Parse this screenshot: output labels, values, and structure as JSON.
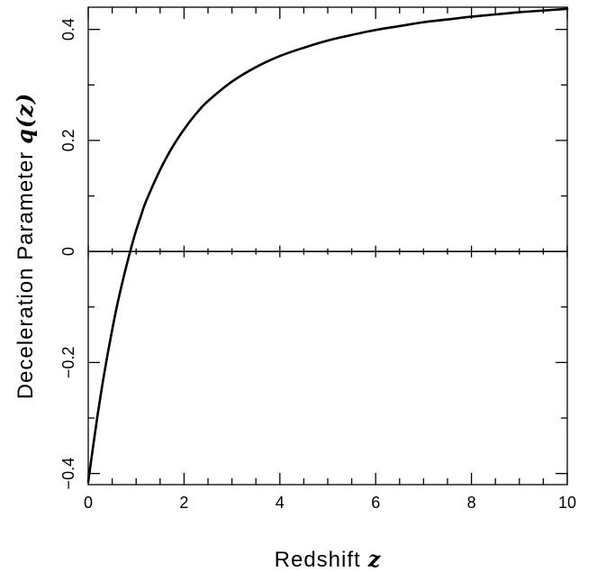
{
  "chart_data": {
    "type": "line",
    "title": "",
    "xlabel_text": "Redshift",
    "xlabel_var": "z",
    "ylabel_text": "Deceleration Parameter",
    "ylabel_var": "q(z)",
    "xlim": [
      0,
      10
    ],
    "ylim": [
      -0.42,
      0.44
    ],
    "grid": false,
    "xticks": [
      {
        "value": 0,
        "label": "0"
      },
      {
        "value": 2,
        "label": "2"
      },
      {
        "value": 4,
        "label": "4"
      },
      {
        "value": 6,
        "label": "6"
      },
      {
        "value": 8,
        "label": "8"
      },
      {
        "value": 10,
        "label": "10"
      }
    ],
    "yticks": [
      {
        "value": -0.4,
        "label": "−0.4"
      },
      {
        "value": -0.2,
        "label": "−0.2"
      },
      {
        "value": 0,
        "label": "0"
      },
      {
        "value": 0.2,
        "label": "0.2"
      },
      {
        "value": 0.4,
        "label": "0.4"
      }
    ],
    "x_minor_step": 0.5,
    "y_minor_step": 0.1,
    "reference_line_y": 0,
    "series": [
      {
        "color": "#000000",
        "x": [
          0,
          0.1,
          0.2,
          0.3,
          0.4,
          0.5,
          0.6,
          0.7,
          0.8,
          0.9,
          1.0,
          1.1,
          1.2,
          1.5,
          1.75,
          2.0,
          2.25,
          2.5,
          3.0,
          3.5,
          4.0,
          4.5,
          5.0,
          5.5,
          6.0,
          6.5,
          7.0,
          7.5,
          8.0,
          8.5,
          9.0,
          9.5,
          10.0
        ],
        "y": [
          -0.415,
          -0.352,
          -0.292,
          -0.237,
          -0.187,
          -0.141,
          -0.098,
          -0.06,
          -0.025,
          0.008,
          0.038,
          0.064,
          0.089,
          0.147,
          0.187,
          0.22,
          0.248,
          0.271,
          0.306,
          0.332,
          0.352,
          0.367,
          0.38,
          0.39,
          0.399,
          0.406,
          0.413,
          0.418,
          0.423,
          0.427,
          0.431,
          0.434,
          0.437
        ]
      }
    ]
  }
}
